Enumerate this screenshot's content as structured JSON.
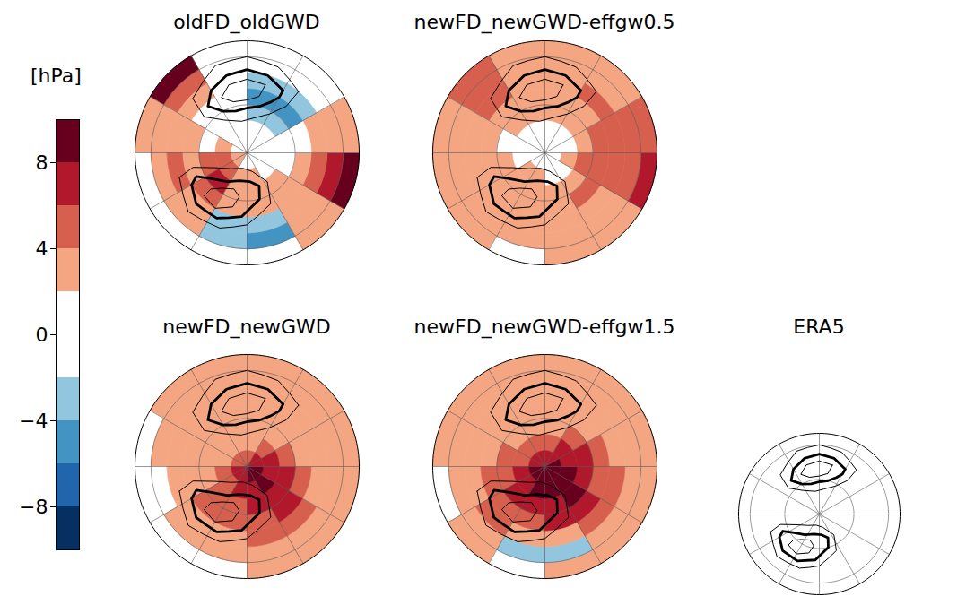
{
  "chart_data": {
    "type": "polar_map_panels",
    "colorbar": {
      "label": "[hPa]",
      "range": [
        -10,
        10
      ],
      "ticks": [
        -8,
        -4,
        0,
        4,
        8
      ],
      "boundaries": [
        -10,
        -8,
        -6,
        -4,
        -2,
        2,
        4,
        6,
        8,
        10
      ],
      "colors": [
        "#053061",
        "#2166ac",
        "#4393c3",
        "#92c5de",
        "#ffffff",
        "#f4a582",
        "#d6604d",
        "#b2182b",
        "#67001f"
      ]
    },
    "lon_edges": [
      -180,
      -150,
      -120,
      -90,
      -60,
      -30,
      0,
      30,
      60,
      90,
      120,
      150,
      180
    ],
    "lat_edges": [
      20,
      30,
      40,
      50,
      60,
      70,
      80,
      90
    ],
    "contours": [
      {
        "line_style": "solid",
        "points": [
          [
            140,
            40
          ],
          [
            160,
            33
          ],
          [
            180,
            30
          ],
          [
            -160,
            32
          ],
          [
            -135,
            42
          ],
          [
            -130,
            55
          ],
          [
            -145,
            65
          ],
          [
            -170,
            70
          ],
          [
            170,
            68
          ],
          [
            150,
            62
          ],
          [
            140,
            52
          ],
          [
            140,
            40
          ]
        ]
      },
      {
        "line_style": "bold",
        "points": [
          [
            150,
            45
          ],
          [
            165,
            40
          ],
          [
            180,
            38
          ],
          [
            -165,
            40
          ],
          [
            -150,
            45
          ],
          [
            -140,
            52
          ],
          [
            -150,
            60
          ],
          [
            -165,
            63
          ],
          [
            180,
            62
          ],
          [
            165,
            60
          ],
          [
            155,
            55
          ],
          [
            150,
            50
          ],
          [
            150,
            45
          ]
        ]
      },
      {
        "line_style": "solid",
        "points": [
          [
            165,
            46
          ],
          [
            180,
            44
          ],
          [
            -165,
            46
          ],
          [
            -155,
            52
          ],
          [
            -165,
            57
          ],
          [
            180,
            57
          ],
          [
            168,
            54
          ],
          [
            165,
            46
          ]
        ]
      },
      {
        "line_style": "solid",
        "points": [
          [
            -70,
            45
          ],
          [
            -45,
            38
          ],
          [
            -20,
            40
          ],
          [
            0,
            45
          ],
          [
            25,
            55
          ],
          [
            35,
            68
          ],
          [
            15,
            78
          ],
          [
            -15,
            80
          ],
          [
            -45,
            76
          ],
          [
            -65,
            68
          ],
          [
            -75,
            55
          ],
          [
            -70,
            45
          ]
        ]
      },
      {
        "line_style": "bold",
        "points": [
          [
            -60,
            50
          ],
          [
            -45,
            45
          ],
          [
            -25,
            45
          ],
          [
            -5,
            50
          ],
          [
            15,
            60
          ],
          [
            20,
            68
          ],
          [
            5,
            72
          ],
          [
            -15,
            72
          ],
          [
            -35,
            68
          ],
          [
            -55,
            62
          ],
          [
            -65,
            55
          ],
          [
            -60,
            50
          ]
        ]
      },
      {
        "line_style": "solid",
        "points": [
          [
            -45,
            52
          ],
          [
            -30,
            50
          ],
          [
            -15,
            55
          ],
          [
            -10,
            62
          ],
          [
            -20,
            66
          ],
          [
            -35,
            63
          ],
          [
            -45,
            58
          ],
          [
            -45,
            52
          ]
        ]
      }
    ],
    "panels": [
      {
        "title": "oldFD_oldGWD",
        "bias": [
          [
            0,
            9,
            3,
            0,
            0,
            0,
            0,
            3,
            9,
            3,
            0,
            0
          ],
          [
            0,
            5,
            3,
            3,
            3,
            -3,
            -5,
            3,
            7,
            3,
            0,
            0
          ],
          [
            0,
            3,
            3,
            5,
            3,
            -3,
            -3,
            3,
            5,
            3,
            -3,
            -3
          ],
          [
            0,
            0,
            3,
            3,
            5,
            3,
            3,
            3,
            3,
            0,
            -5,
            -5
          ],
          [
            0,
            0,
            0,
            5,
            7,
            3,
            3,
            3,
            0,
            0,
            -3,
            -3
          ],
          [
            0,
            0,
            3,
            5,
            5,
            3,
            3,
            0,
            0,
            0,
            0,
            0
          ],
          [
            0,
            0,
            0,
            3,
            3,
            0,
            0,
            0,
            0,
            0,
            0,
            0
          ]
        ]
      },
      {
        "title": "newFD_newGWD-effgw0.5",
        "bias": [
          [
            3,
            5,
            3,
            3,
            3,
            0,
            3,
            3,
            7,
            5,
            3,
            3
          ],
          [
            3,
            5,
            3,
            3,
            3,
            3,
            3,
            3,
            5,
            5,
            3,
            3
          ],
          [
            3,
            5,
            3,
            3,
            3,
            3,
            3,
            3,
            5,
            5,
            5,
            3
          ],
          [
            3,
            3,
            3,
            3,
            3,
            3,
            3,
            5,
            5,
            5,
            3,
            3
          ],
          [
            3,
            3,
            0,
            3,
            3,
            3,
            3,
            3,
            5,
            3,
            3,
            3
          ],
          [
            0,
            0,
            0,
            0,
            3,
            3,
            0,
            0,
            3,
            0,
            0,
            0
          ],
          [
            0,
            0,
            0,
            0,
            0,
            0,
            0,
            0,
            0,
            0,
            0,
            0
          ]
        ]
      },
      {
        "title": "newFD_newGWD",
        "bias": [
          [
            3,
            3,
            0,
            0,
            0,
            0,
            3,
            3,
            3,
            3,
            3,
            3
          ],
          [
            3,
            3,
            3,
            0,
            3,
            3,
            3,
            3,
            3,
            3,
            3,
            3
          ],
          [
            3,
            3,
            3,
            3,
            3,
            3,
            5,
            5,
            3,
            3,
            3,
            3
          ],
          [
            3,
            3,
            3,
            3,
            5,
            5,
            5,
            7,
            5,
            3,
            3,
            3
          ],
          [
            3,
            3,
            3,
            3,
            5,
            5,
            7,
            7,
            7,
            5,
            3,
            3
          ],
          [
            3,
            3,
            3,
            5,
            5,
            7,
            7,
            9,
            7,
            7,
            5,
            3
          ],
          [
            5,
            5,
            5,
            7,
            7,
            7,
            9,
            9,
            9,
            7,
            7,
            5
          ]
        ]
      },
      {
        "title": "newFD_newGWD-effgw1.5",
        "bias": [
          [
            3,
            3,
            3,
            0,
            3,
            0,
            3,
            3,
            3,
            3,
            3,
            3
          ],
          [
            3,
            3,
            3,
            3,
            3,
            -3,
            -3,
            3,
            3,
            3,
            3,
            3
          ],
          [
            3,
            3,
            3,
            3,
            5,
            3,
            3,
            5,
            5,
            3,
            3,
            3
          ],
          [
            3,
            3,
            3,
            5,
            5,
            5,
            7,
            7,
            5,
            5,
            3,
            3
          ],
          [
            3,
            3,
            5,
            5,
            7,
            7,
            7,
            9,
            7,
            7,
            5,
            3
          ],
          [
            5,
            5,
            5,
            7,
            7,
            9,
            9,
            9,
            9,
            7,
            7,
            5
          ],
          [
            7,
            7,
            7,
            9,
            9,
            9,
            9,
            9,
            9,
            9,
            7,
            7
          ]
        ]
      },
      {
        "title": "ERA5",
        "bias": null
      }
    ]
  }
}
